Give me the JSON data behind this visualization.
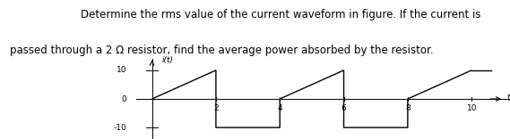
{
  "title_line1": "Determine the rms value of the current waveform in figure. If the current is",
  "title_line2": "passed through a 2 Ω resistor, find the average power absorbed by the resistor.",
  "title_fontsize": 8.5,
  "xlabel": "t",
  "ylabel": "i(t)",
  "yticks": [
    -10,
    0,
    10
  ],
  "xticks": [
    2,
    4,
    6,
    8,
    10
  ],
  "xtick_labels": [
    "2",
    "4",
    "6",
    "8",
    "10"
  ],
  "xlim": [
    -0.5,
    11.2
  ],
  "ylim": [
    -14,
    14
  ],
  "waveform_x": [
    0,
    2,
    2,
    4,
    4,
    6,
    6,
    8,
    8,
    10
  ],
  "waveform_y": [
    0,
    10,
    -10,
    -10,
    0,
    10,
    -10,
    -10,
    0,
    10
  ],
  "line_color": "#000000",
  "line_width": 1.0
}
